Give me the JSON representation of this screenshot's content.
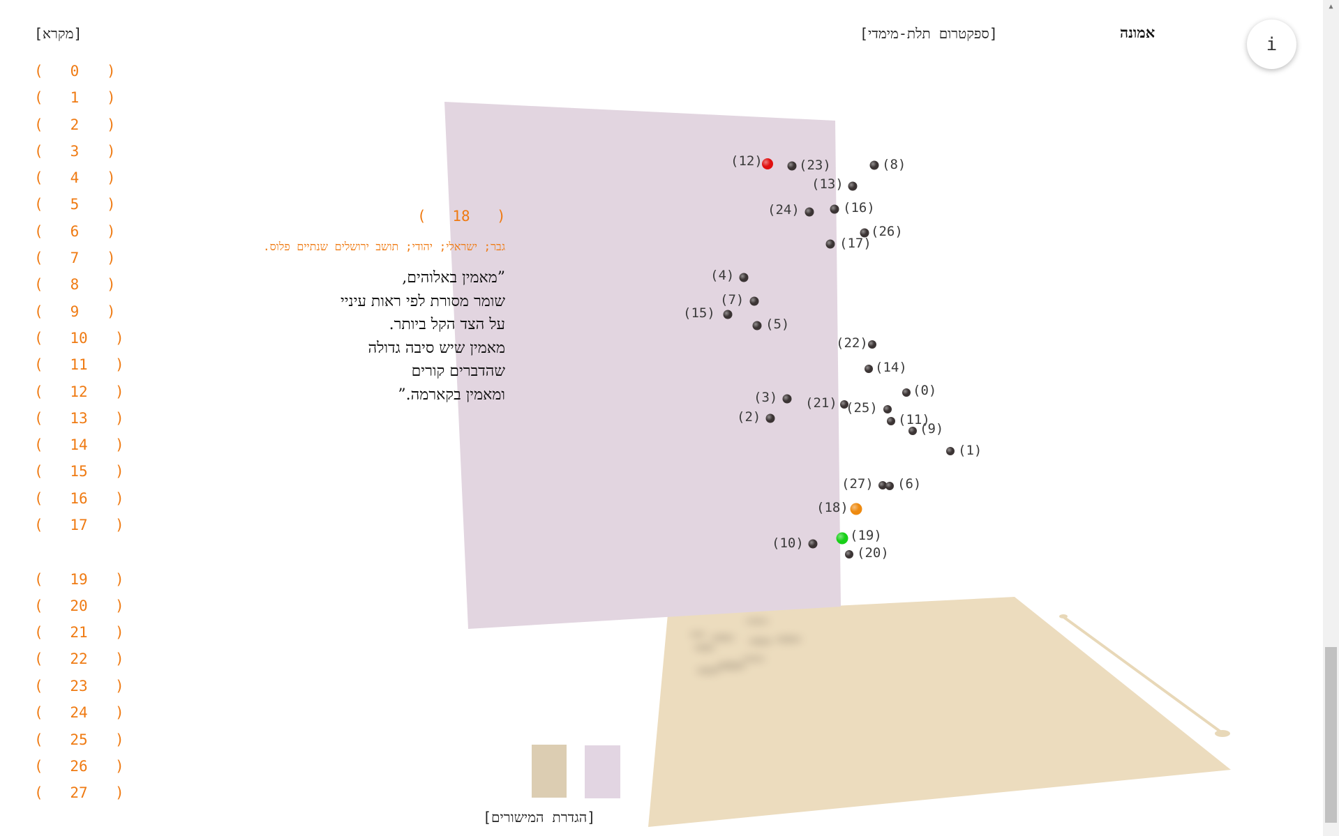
{
  "header": {
    "legend_link": "[מקרא]",
    "spectrum_link": "[ספקטרום תלת-מימדי]",
    "title": "אמונה",
    "info_label": "i"
  },
  "index_list": [
    "0",
    "1",
    "2",
    "3",
    "4",
    "5",
    "6",
    "7",
    "8",
    "9",
    "10",
    "11",
    "12",
    "13",
    "14",
    "15",
    "16",
    "17",
    "19",
    "20",
    "21",
    "22",
    "23",
    "24",
    "25",
    "26",
    "27"
  ],
  "selected": {
    "number": "18",
    "description": "גבר; ישראלי; יהודי; תושב ירושלים שנתיים פלוס.",
    "quote_lines": [
      "”מאמין באלוהים,",
      "שומר מסורת לפי ראות עיניי",
      "על הצד הקל ביותר.",
      "מאמין שיש סיבה גדולה",
      "שהדברים קורים",
      "ומאמין בקארמה.”"
    ]
  },
  "points": [
    {
      "id": "12",
      "label": "(12)",
      "color": "#e01010"
    },
    {
      "id": "23",
      "label": "(23)",
      "color": "#3b3434"
    },
    {
      "id": "8",
      "label": "(8)",
      "color": "#3b3434"
    },
    {
      "id": "13",
      "label": "(13)",
      "color": "#3b3434"
    },
    {
      "id": "24",
      "label": "(24)",
      "color": "#3b3434"
    },
    {
      "id": "16",
      "label": "(16)",
      "color": "#3b3434"
    },
    {
      "id": "26",
      "label": "(26)",
      "color": "#3b3434"
    },
    {
      "id": "17",
      "label": "(17)",
      "color": "#3b3434"
    },
    {
      "id": "4",
      "label": "(4)",
      "color": "#3b3434"
    },
    {
      "id": "7",
      "label": "(7)",
      "color": "#3b3434"
    },
    {
      "id": "15",
      "label": "(15)",
      "color": "#3b3434"
    },
    {
      "id": "5",
      "label": "(5)",
      "color": "#3b3434"
    },
    {
      "id": "22",
      "label": "(22)",
      "color": "#3b3434"
    },
    {
      "id": "14",
      "label": "(14)",
      "color": "#3b3434"
    },
    {
      "id": "0",
      "label": "(0)",
      "color": "#3b3434"
    },
    {
      "id": "3",
      "label": "(3)",
      "color": "#3b3434"
    },
    {
      "id": "21",
      "label": "(21)",
      "color": "#3b3434"
    },
    {
      "id": "25",
      "label": "(25)",
      "color": "#3b3434"
    },
    {
      "id": "11",
      "label": "(11)",
      "color": "#3b3434"
    },
    {
      "id": "9",
      "label": "(9)",
      "color": "#3b3434"
    },
    {
      "id": "2",
      "label": "(2)",
      "color": "#3b3434"
    },
    {
      "id": "1",
      "label": "(1)",
      "color": "#3b3434"
    },
    {
      "id": "27",
      "label": "(27)",
      "color": "#3b3434"
    },
    {
      "id": "6",
      "label": "(6)",
      "color": "#3b3434"
    },
    {
      "id": "18",
      "label": "(18)",
      "color": "#ee8a10"
    },
    {
      "id": "19",
      "label": "(19)",
      "color": "#18d018"
    },
    {
      "id": "10",
      "label": "(10)",
      "color": "#3b3434"
    },
    {
      "id": "20",
      "label": "(20)",
      "color": "#3b3434"
    }
  ],
  "planes": {
    "floor_color": "#ecdcbe",
    "wall_color": "#e2d5e0",
    "swatch_floor_color": "#dccdb2",
    "swatch_wall_color": "#e2d5e2",
    "define_link": "[הגדרת המישורים]"
  }
}
